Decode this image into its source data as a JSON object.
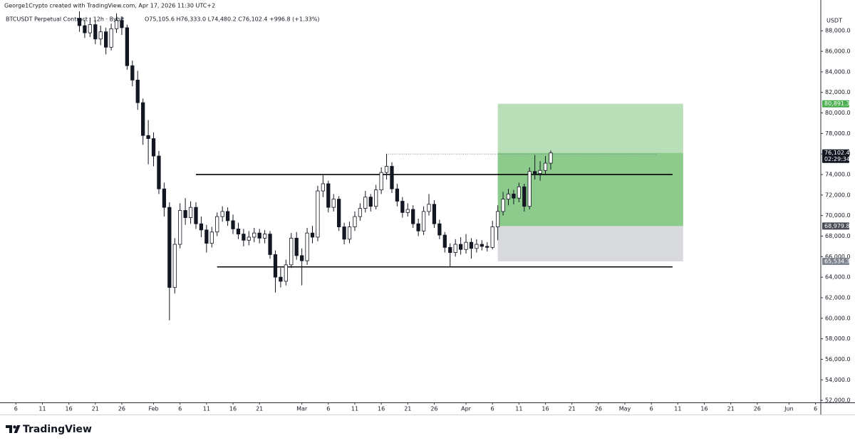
{
  "chart_data": {
    "type": "candlestick",
    "title": "George1Crypto created with TradingView.com, Apr 17, 2026 11:30 UTC+2",
    "symbol": "BTCUSDT Perpetual Contract · 12h · Bybit",
    "ohlc": "O75,105.6 H76,333.0 L74,480.2 C76,102.4 +996.8 (+1.33%)",
    "currency": "USDT",
    "brand": "TradingView",
    "up_color": "#ffffff",
    "down_color": "#131722",
    "candles": {
      "x": [
        "2026-01-18",
        "2026-01-19",
        "2026-01-20",
        "2026-01-21",
        "2026-01-22",
        "2026-01-23",
        "2026-01-24",
        "2026-01-25",
        "2026-01-26",
        "2026-01-27",
        "2026-01-28",
        "2026-01-29",
        "2026-01-30",
        "2026-01-31",
        "2026-02-01",
        "2026-02-02",
        "2026-02-03",
        "2026-02-04",
        "2026-02-05",
        "2026-02-06",
        "2026-02-07",
        "2026-02-08",
        "2026-02-09",
        "2026-02-10",
        "2026-02-11",
        "2026-02-12",
        "2026-02-13",
        "2026-02-14",
        "2026-02-15",
        "2026-02-16",
        "2026-02-17",
        "2026-02-18",
        "2026-02-19",
        "2026-02-20",
        "2026-02-21",
        "2026-02-22",
        "2026-02-23",
        "2026-02-24",
        "2026-02-25",
        "2026-02-26",
        "2026-02-27",
        "2026-02-28",
        "2026-03-01",
        "2026-03-02",
        "2026-03-03",
        "2026-03-04",
        "2026-03-05",
        "2026-03-06",
        "2026-03-07",
        "2026-03-08",
        "2026-03-09",
        "2026-03-10",
        "2026-03-11",
        "2026-03-12",
        "2026-03-13",
        "2026-03-14",
        "2026-03-15",
        "2026-03-16",
        "2026-03-17",
        "2026-03-18",
        "2026-03-19",
        "2026-03-20",
        "2026-03-21",
        "2026-03-22",
        "2026-03-23",
        "2026-03-24",
        "2026-03-25",
        "2026-03-26",
        "2026-03-27",
        "2026-03-28",
        "2026-03-29",
        "2026-03-30",
        "2026-03-31",
        "2026-04-01",
        "2026-04-02",
        "2026-04-03",
        "2026-04-04",
        "2026-04-05",
        "2026-04-06",
        "2026-04-07",
        "2026-04-08",
        "2026-04-09",
        "2026-04-10",
        "2026-04-11",
        "2026-04-12",
        "2026-04-13",
        "2026-04-14",
        "2026-04-15",
        "2026-04-16",
        "2026-04-17"
      ],
      "open": [
        89200,
        88500,
        87800,
        88600,
        87200,
        87900,
        86400,
        88200,
        89000,
        88300,
        84600,
        83200,
        81000,
        77800,
        77500,
        75800,
        72600,
        70800,
        63000,
        67200,
        70500,
        69800,
        70800,
        69200,
        68600,
        67300,
        68400,
        69900,
        70400,
        69500,
        68700,
        68200,
        67600,
        67900,
        68300,
        67800,
        68200,
        66200,
        64000,
        63600,
        65200,
        67800,
        66100,
        65600,
        68300,
        67900,
        72400,
        73100,
        70800,
        71600,
        68900,
        67700,
        68900,
        69900,
        70700,
        71800,
        70900,
        72500,
        74200,
        74800,
        72600,
        71400,
        70300,
        70600,
        69200,
        68500,
        70400,
        71100,
        69200,
        68100,
        66900,
        66400,
        67200,
        66700,
        67400,
        66800,
        67200,
        67000,
        66900,
        68900,
        70400,
        71600,
        72100,
        71700,
        72800,
        70900,
        74300,
        74100,
        74400,
        75105.6
      ],
      "high": [
        89900,
        89100,
        89300,
        89000,
        88500,
        88300,
        88700,
        89700,
        89400,
        88600,
        85100,
        84100,
        81400,
        79300,
        78100,
        76300,
        73200,
        71300,
        67800,
        71200,
        71700,
        71400,
        71300,
        69900,
        69100,
        68900,
        70300,
        70900,
        70800,
        70100,
        69300,
        68700,
        68500,
        68800,
        68700,
        68600,
        68500,
        66600,
        64900,
        65700,
        68300,
        68400,
        66800,
        68800,
        69000,
        72900,
        74000,
        73400,
        72100,
        71900,
        69300,
        69400,
        70400,
        71200,
        72400,
        72100,
        73000,
        74700,
        76000,
        75200,
        73100,
        71800,
        71200,
        71000,
        69700,
        70900,
        72100,
        71500,
        69600,
        68400,
        67300,
        67700,
        67900,
        68200,
        67800,
        67700,
        67600,
        67400,
        69500,
        71000,
        72300,
        72600,
        72500,
        73200,
        73100,
        74700,
        75900,
        75300,
        75800,
        76333.0
      ],
      "low": [
        87900,
        87300,
        87400,
        86700,
        86600,
        85700,
        86100,
        87800,
        87600,
        84200,
        82600,
        80300,
        76900,
        75000,
        74800,
        72100,
        69900,
        59800,
        62400,
        66800,
        69100,
        69200,
        68700,
        67900,
        66400,
        66900,
        68000,
        69400,
        69000,
        68200,
        67700,
        67000,
        67100,
        67400,
        67300,
        67300,
        65800,
        62500,
        63000,
        63200,
        64900,
        65700,
        63200,
        65200,
        67300,
        67500,
        71800,
        70300,
        70400,
        68500,
        67200,
        67300,
        68500,
        69500,
        70300,
        70400,
        70600,
        72100,
        73500,
        72200,
        70900,
        69800,
        69900,
        68800,
        68000,
        68100,
        70000,
        68800,
        67700,
        66400,
        65000,
        66000,
        66200,
        66300,
        65800,
        66400,
        66600,
        66500,
        66700,
        67600,
        70000,
        71000,
        71100,
        71300,
        70400,
        70600,
        73500,
        73400,
        74000,
        74480.2
      ],
      "close": [
        88500,
        87800,
        88600,
        87200,
        87900,
        86400,
        88200,
        89000,
        88300,
        84600,
        83200,
        81000,
        77800,
        77500,
        75800,
        72600,
        70800,
        63000,
        67200,
        70500,
        69800,
        70800,
        69200,
        68600,
        67300,
        68400,
        69900,
        70400,
        69500,
        68700,
        68200,
        67600,
        67900,
        68300,
        67800,
        68200,
        66200,
        64000,
        63600,
        65200,
        67800,
        66100,
        65600,
        68300,
        67900,
        72400,
        73100,
        70800,
        71600,
        68900,
        67700,
        68900,
        69900,
        70700,
        71800,
        70900,
        72500,
        74200,
        74800,
        72600,
        71400,
        70300,
        70600,
        69200,
        68500,
        70400,
        71100,
        69200,
        68100,
        66900,
        66400,
        67200,
        66700,
        67400,
        66800,
        67200,
        67000,
        66900,
        68900,
        70400,
        71600,
        72100,
        71700,
        72800,
        70900,
        74300,
        74100,
        74400,
        75105.6,
        76102.4
      ]
    },
    "levels": [
      {
        "value": 74000,
        "from": "2026-02-09",
        "to": "2026-05-10",
        "color": "#000000"
      },
      {
        "value": 65000,
        "from": "2026-02-13",
        "to": "2026-05-10",
        "color": "#000000"
      }
    ],
    "high_marker": {
      "value": 76000,
      "from": "2026-03-17",
      "to": "2026-05-07"
    },
    "position": {
      "start": "2026-04-07",
      "end": "2026-05-12",
      "target": {
        "value": 80891.3,
        "label": "80,891.3"
      },
      "entry": {
        "value": 68979.8,
        "label": "68,979.8"
      },
      "stop": {
        "value": 65534.3,
        "label": "65,534.3"
      },
      "profit_color": "#b9dfb8",
      "current_color": "#8ccb8b",
      "stop_color": "#d9dadd"
    },
    "last_price": {
      "value": 76102.4,
      "label": "76,102.4",
      "countdown": "02:29:34"
    },
    "ylim": [
      51800,
      91000
    ],
    "yticks": [
      {
        "value": 52000,
        "label": "52,000.0"
      },
      {
        "value": 54000,
        "label": "54,000.0"
      },
      {
        "value": 56000,
        "label": "56,000.0"
      },
      {
        "value": 58000,
        "label": "58,000.0"
      },
      {
        "value": 60000,
        "label": "60,000.0"
      },
      {
        "value": 62000,
        "label": "62,000.0"
      },
      {
        "value": 64000,
        "label": "64,000.0"
      },
      {
        "value": 66000,
        "label": "66,000.0"
      },
      {
        "value": 68000,
        "label": "68,000.0"
      },
      {
        "value": 70000,
        "label": "70,000.0"
      },
      {
        "value": 72000,
        "label": "72,000.0"
      },
      {
        "value": 74000,
        "label": "74,000.0"
      },
      {
        "value": 76000,
        "label": "76,000.0"
      },
      {
        "value": 78000,
        "label": "78,000.0"
      },
      {
        "value": 80000,
        "label": "80,000.0"
      },
      {
        "value": 82000,
        "label": "82,000.0"
      },
      {
        "value": 84000,
        "label": "84,000.0"
      },
      {
        "value": 86000,
        "label": "86,000.0"
      },
      {
        "value": 88000,
        "label": "88,000.0"
      }
    ],
    "xlim": [
      "2026-01-03",
      "2026-06-07"
    ],
    "xticks": [
      {
        "value": "2026-01-06",
        "label": "6"
      },
      {
        "value": "2026-01-11",
        "label": "11"
      },
      {
        "value": "2026-01-16",
        "label": "16"
      },
      {
        "value": "2026-01-21",
        "label": "21"
      },
      {
        "value": "2026-01-26",
        "label": "26"
      },
      {
        "value": "2026-02-01",
        "label": "Feb"
      },
      {
        "value": "2026-02-06",
        "label": "6"
      },
      {
        "value": "2026-02-11",
        "label": "11"
      },
      {
        "value": "2026-02-16",
        "label": "16"
      },
      {
        "value": "2026-02-21",
        "label": "21"
      },
      {
        "value": "2026-03-01",
        "label": "Mar"
      },
      {
        "value": "2026-03-06",
        "label": "6"
      },
      {
        "value": "2026-03-11",
        "label": "11"
      },
      {
        "value": "2026-03-16",
        "label": "16"
      },
      {
        "value": "2026-03-21",
        "label": "21"
      },
      {
        "value": "2026-03-26",
        "label": "26"
      },
      {
        "value": "2026-04-01",
        "label": "Apr"
      },
      {
        "value": "2026-04-06",
        "label": "6"
      },
      {
        "value": "2026-04-11",
        "label": "11"
      },
      {
        "value": "2026-04-16",
        "label": "16"
      },
      {
        "value": "2026-04-21",
        "label": "21"
      },
      {
        "value": "2026-04-26",
        "label": "26"
      },
      {
        "value": "2026-05-01",
        "label": "May"
      },
      {
        "value": "2026-05-06",
        "label": "6"
      },
      {
        "value": "2026-05-11",
        "label": "11"
      },
      {
        "value": "2026-05-16",
        "label": "16"
      },
      {
        "value": "2026-05-21",
        "label": "21"
      },
      {
        "value": "2026-05-26",
        "label": "26"
      },
      {
        "value": "2026-06-01",
        "label": "Jun"
      },
      {
        "value": "2026-06-06",
        "label": "6"
      }
    ]
  }
}
